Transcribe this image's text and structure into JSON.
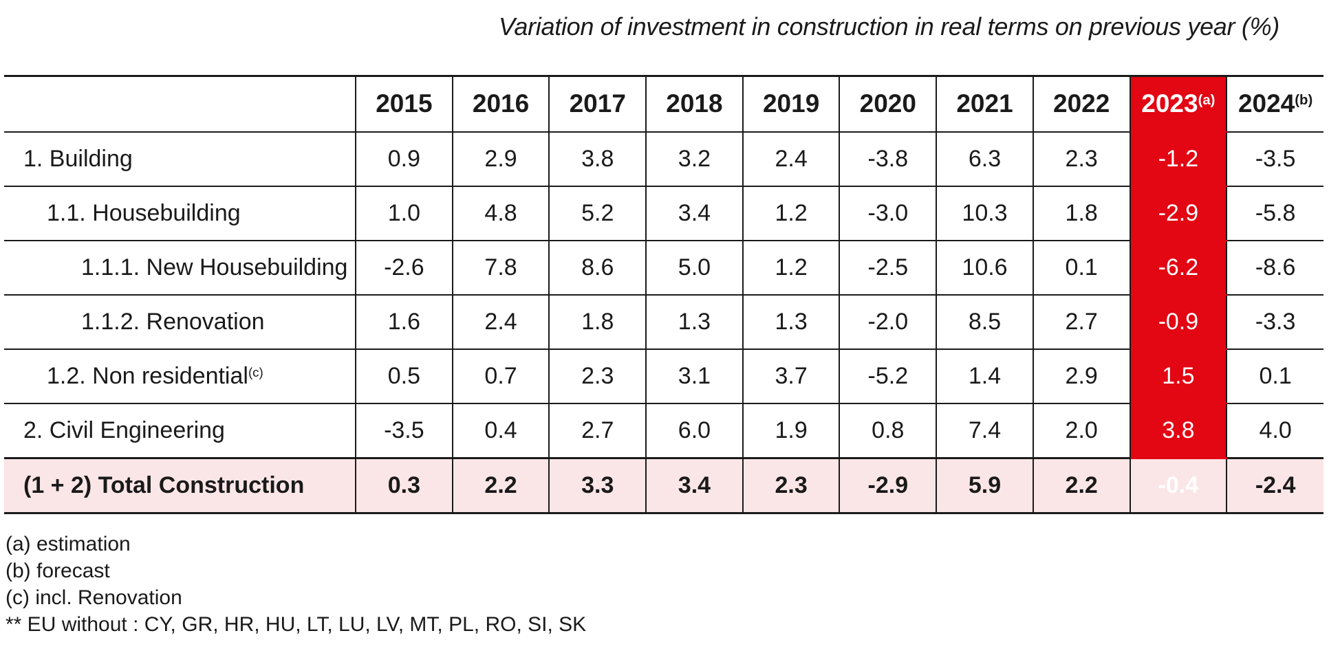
{
  "chart_data": {
    "type": "table",
    "title": "Variation of investment in construction in real terms on previous year (%)",
    "columns": [
      {
        "label": "2015",
        "sup": "",
        "highlight": false
      },
      {
        "label": "2016",
        "sup": "",
        "highlight": false
      },
      {
        "label": "2017",
        "sup": "",
        "highlight": false
      },
      {
        "label": "2018",
        "sup": "",
        "highlight": false
      },
      {
        "label": "2019",
        "sup": "",
        "highlight": false
      },
      {
        "label": "2020",
        "sup": "",
        "highlight": false
      },
      {
        "label": "2021",
        "sup": "",
        "highlight": false
      },
      {
        "label": "2022",
        "sup": "",
        "highlight": false
      },
      {
        "label": "2023",
        "sup": "(a)",
        "highlight": true
      },
      {
        "label": "2024",
        "sup": "(b)",
        "highlight": false
      }
    ],
    "rows": [
      {
        "label": "1. Building",
        "sup": "",
        "indent": 0,
        "total": false,
        "values": [
          "0.9",
          "2.9",
          "3.8",
          "3.2",
          "2.4",
          "-3.8",
          "6.3",
          "2.3",
          "-1.2",
          "-3.5"
        ]
      },
      {
        "label": "1.1. Housebuilding",
        "sup": "",
        "indent": 1,
        "total": false,
        "values": [
          "1.0",
          "4.8",
          "5.2",
          "3.4",
          "1.2",
          "-3.0",
          "10.3",
          "1.8",
          "-2.9",
          "-5.8"
        ]
      },
      {
        "label": "1.1.1. New Housebuilding",
        "sup": "",
        "indent": 2,
        "total": false,
        "values": [
          "-2.6",
          "7.8",
          "8.6",
          "5.0",
          "1.2",
          "-2.5",
          "10.6",
          "0.1",
          "-6.2",
          "-8.6"
        ]
      },
      {
        "label": "1.1.2. Renovation",
        "sup": "",
        "indent": 2,
        "total": false,
        "values": [
          "1.6",
          "2.4",
          "1.8",
          "1.3",
          "1.3",
          "-2.0",
          "8.5",
          "2.7",
          "-0.9",
          "-3.3"
        ]
      },
      {
        "label": "1.2. Non residential",
        "sup": "(c)",
        "indent": 1,
        "total": false,
        "values": [
          "0.5",
          "0.7",
          "2.3",
          "3.1",
          "3.7",
          "-5.2",
          "1.4",
          "2.9",
          "1.5",
          "0.1"
        ]
      },
      {
        "label": "2. Civil Engineering",
        "sup": "",
        "indent": 0,
        "total": false,
        "values": [
          "-3.5",
          "0.4",
          "2.7",
          "6.0",
          "1.9",
          "0.8",
          "7.4",
          "2.0",
          "3.8",
          "4.0"
        ]
      },
      {
        "label": "(1 + 2) Total Construction",
        "sup": "",
        "indent": 0,
        "total": true,
        "values": [
          "0.3",
          "2.2",
          "3.3",
          "3.4",
          "2.3",
          "-2.9",
          "5.9",
          "2.2",
          "-0.4",
          "-2.4"
        ]
      }
    ],
    "footnotes": [
      "(a) estimation",
      "(b) forecast",
      "(c) incl. Renovation",
      "** EU without : CY, GR, HR, HU, LT, LU, LV, MT, PL, RO, SI, SK"
    ],
    "colors": {
      "highlight_red": "#E30613",
      "total_row_pink": "#FBE6E7",
      "line_black": "#1A1A1A"
    }
  }
}
